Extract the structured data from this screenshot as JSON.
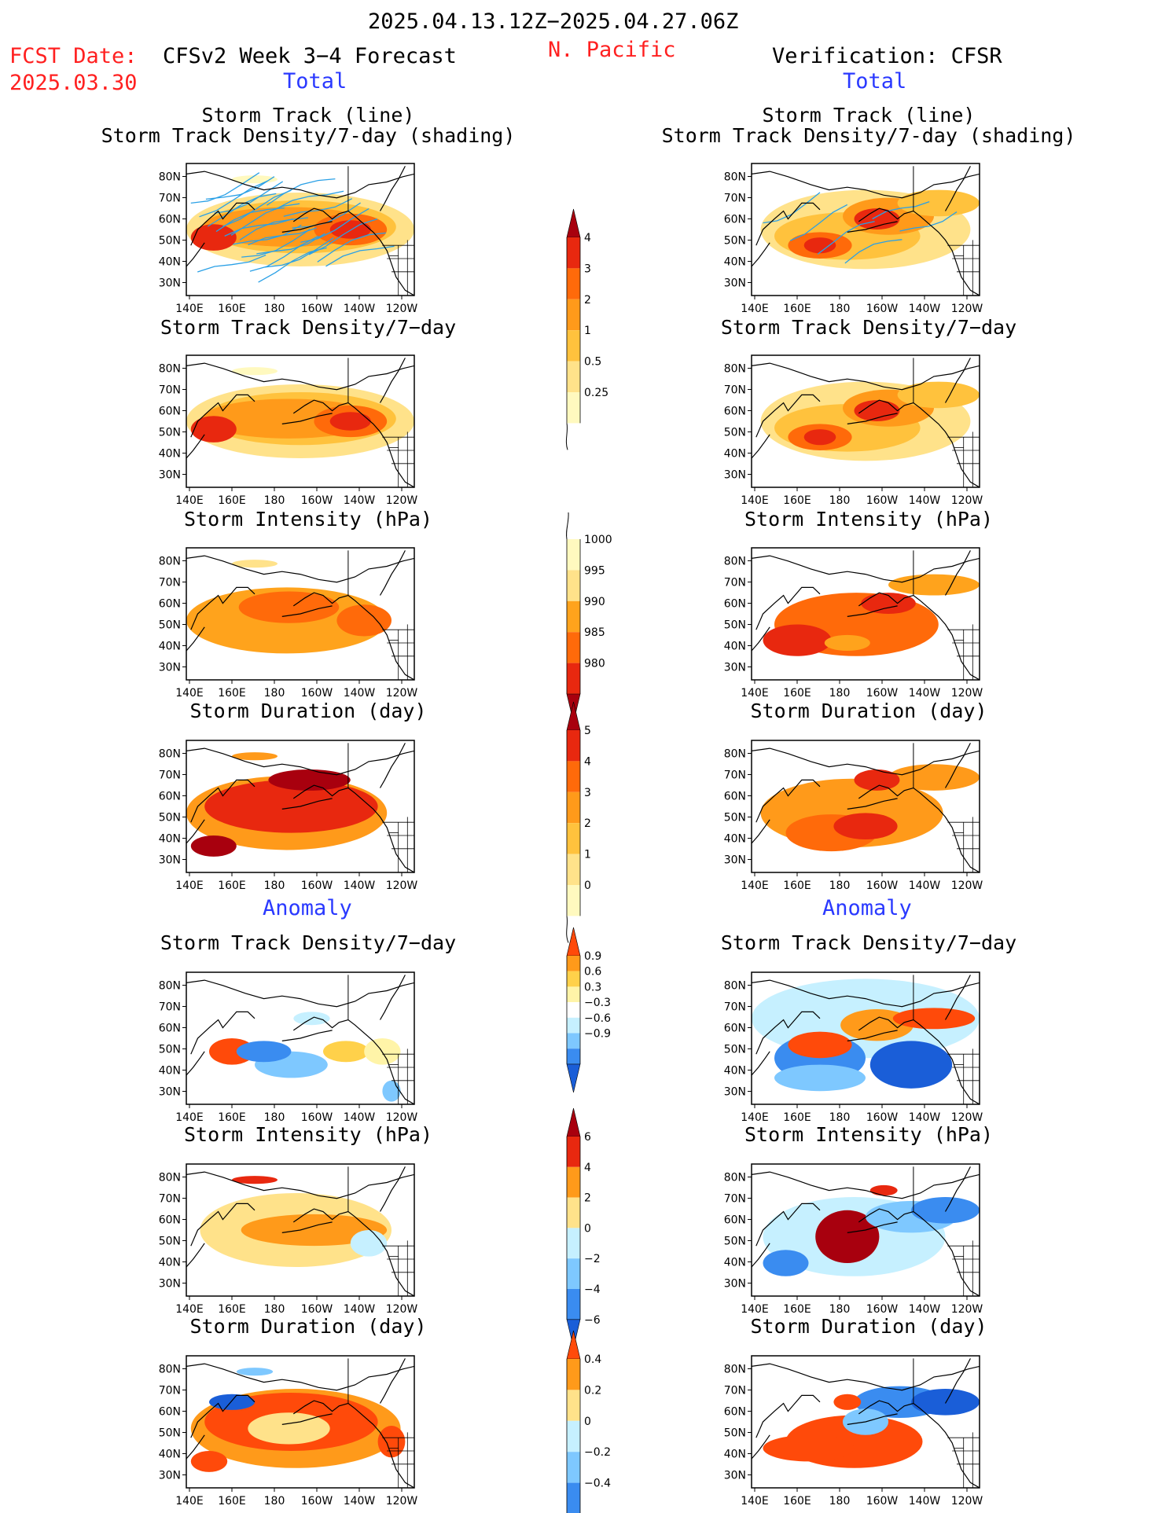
{
  "header": {
    "date_range": "2025.04.13.12Z−2025.04.27.06Z",
    "fcst_label": "FCST Date:",
    "fcst_date": "2025.03.30",
    "left_title": "CFSv2 Week 3−4 Forecast",
    "region": "N. Pacific",
    "right_title": "Verification: CFSR",
    "total_label": "Total",
    "anomaly_label": "Anomaly"
  },
  "colors": {
    "title_red": "#ff2020",
    "label_blue": "#2a39ff",
    "track_line": "#2aa0e6"
  },
  "axes": {
    "lat_ticks": [
      "80N",
      "70N",
      "60N",
      "50N",
      "40N",
      "30N"
    ],
    "lon_ticks": [
      "140E",
      "160E",
      "180",
      "160W",
      "140W",
      "120W"
    ]
  },
  "panels": [
    {
      "key": "p0",
      "title1": "Storm Track (line)",
      "title2": "Storm Track Density/7-day (shading)"
    },
    {
      "key": "p1",
      "title1": "Storm Track Density/7−day",
      "title2": ""
    },
    {
      "key": "p2",
      "title1": "Storm Intensity (hPa)",
      "title2": ""
    },
    {
      "key": "p3",
      "title1": "Storm Duration (day)",
      "title2": ""
    },
    {
      "key": "p4",
      "title1": "Storm Track Density/7−day",
      "title2": ""
    },
    {
      "key": "p5",
      "title1": "Storm Intensity (hPa)",
      "title2": ""
    },
    {
      "key": "p6",
      "title1": "Storm Duration (day)",
      "title2": ""
    }
  ],
  "chart_data": {
    "type": "heatmap",
    "region": "N. Pacific",
    "lat_range": [
      25,
      85
    ],
    "lon_range": [
      "140E",
      "120W"
    ],
    "colorbars": [
      {
        "name": "Storm Track Density/7-day (total)",
        "levels": [
          "0.25",
          "0.5",
          "1",
          "2",
          "3",
          "4"
        ],
        "colors": [
          "#fff9bf",
          "#ffe28a",
          "#ffc23d",
          "#ff9a1a",
          "#ff6a0a",
          "#e8280f",
          "#a8000e"
        ]
      },
      {
        "name": "Storm Intensity (total, hPa)",
        "levels": [
          "1000",
          "995",
          "990",
          "985",
          "980"
        ],
        "colors": [
          "#fff9bf",
          "#ffe28a",
          "#ffa31c",
          "#ff6a0a",
          "#e8280f",
          "#a8000e"
        ]
      },
      {
        "name": "Storm Duration (total, day)",
        "levels": [
          "0",
          "1",
          "2",
          "3",
          "4",
          "5"
        ],
        "colors": [
          "#fff9bf",
          "#ffe28a",
          "#ffc23d",
          "#ff9a1a",
          "#ff6a0a",
          "#e8280f",
          "#a8000e"
        ]
      },
      {
        "name": "Storm Track Density anomaly",
        "levels": [
          "0.9",
          "0.6",
          "0.3",
          "−0.3",
          "−0.6",
          "−0.9"
        ],
        "colors": [
          "#ff4a0a",
          "#ff9a1a",
          "#ffd14a",
          "#fff4a8",
          "#ffffff",
          "#c6f0ff",
          "#7ec8ff",
          "#3a8cf0",
          "#1a5ed8"
        ]
      },
      {
        "name": "Storm Intensity anomaly (hPa)",
        "levels": [
          "6",
          "4",
          "2",
          "0",
          "−2",
          "−4",
          "−6"
        ],
        "colors": [
          "#a8000e",
          "#e8280f",
          "#ff9a1a",
          "#ffe28a",
          "#c6f0ff",
          "#7ec8ff",
          "#3a8cf0",
          "#1a5ed8"
        ]
      },
      {
        "name": "Storm Duration anomaly (day)",
        "levels": [
          "0.4",
          "0.2",
          "0",
          "−0.2",
          "−0.4"
        ],
        "colors": [
          "#ff4a0a",
          "#ff9a1a",
          "#ffe28a",
          "#c6f0ff",
          "#7ec8ff",
          "#3a8cf0",
          "#1a5ed8"
        ]
      }
    ]
  }
}
